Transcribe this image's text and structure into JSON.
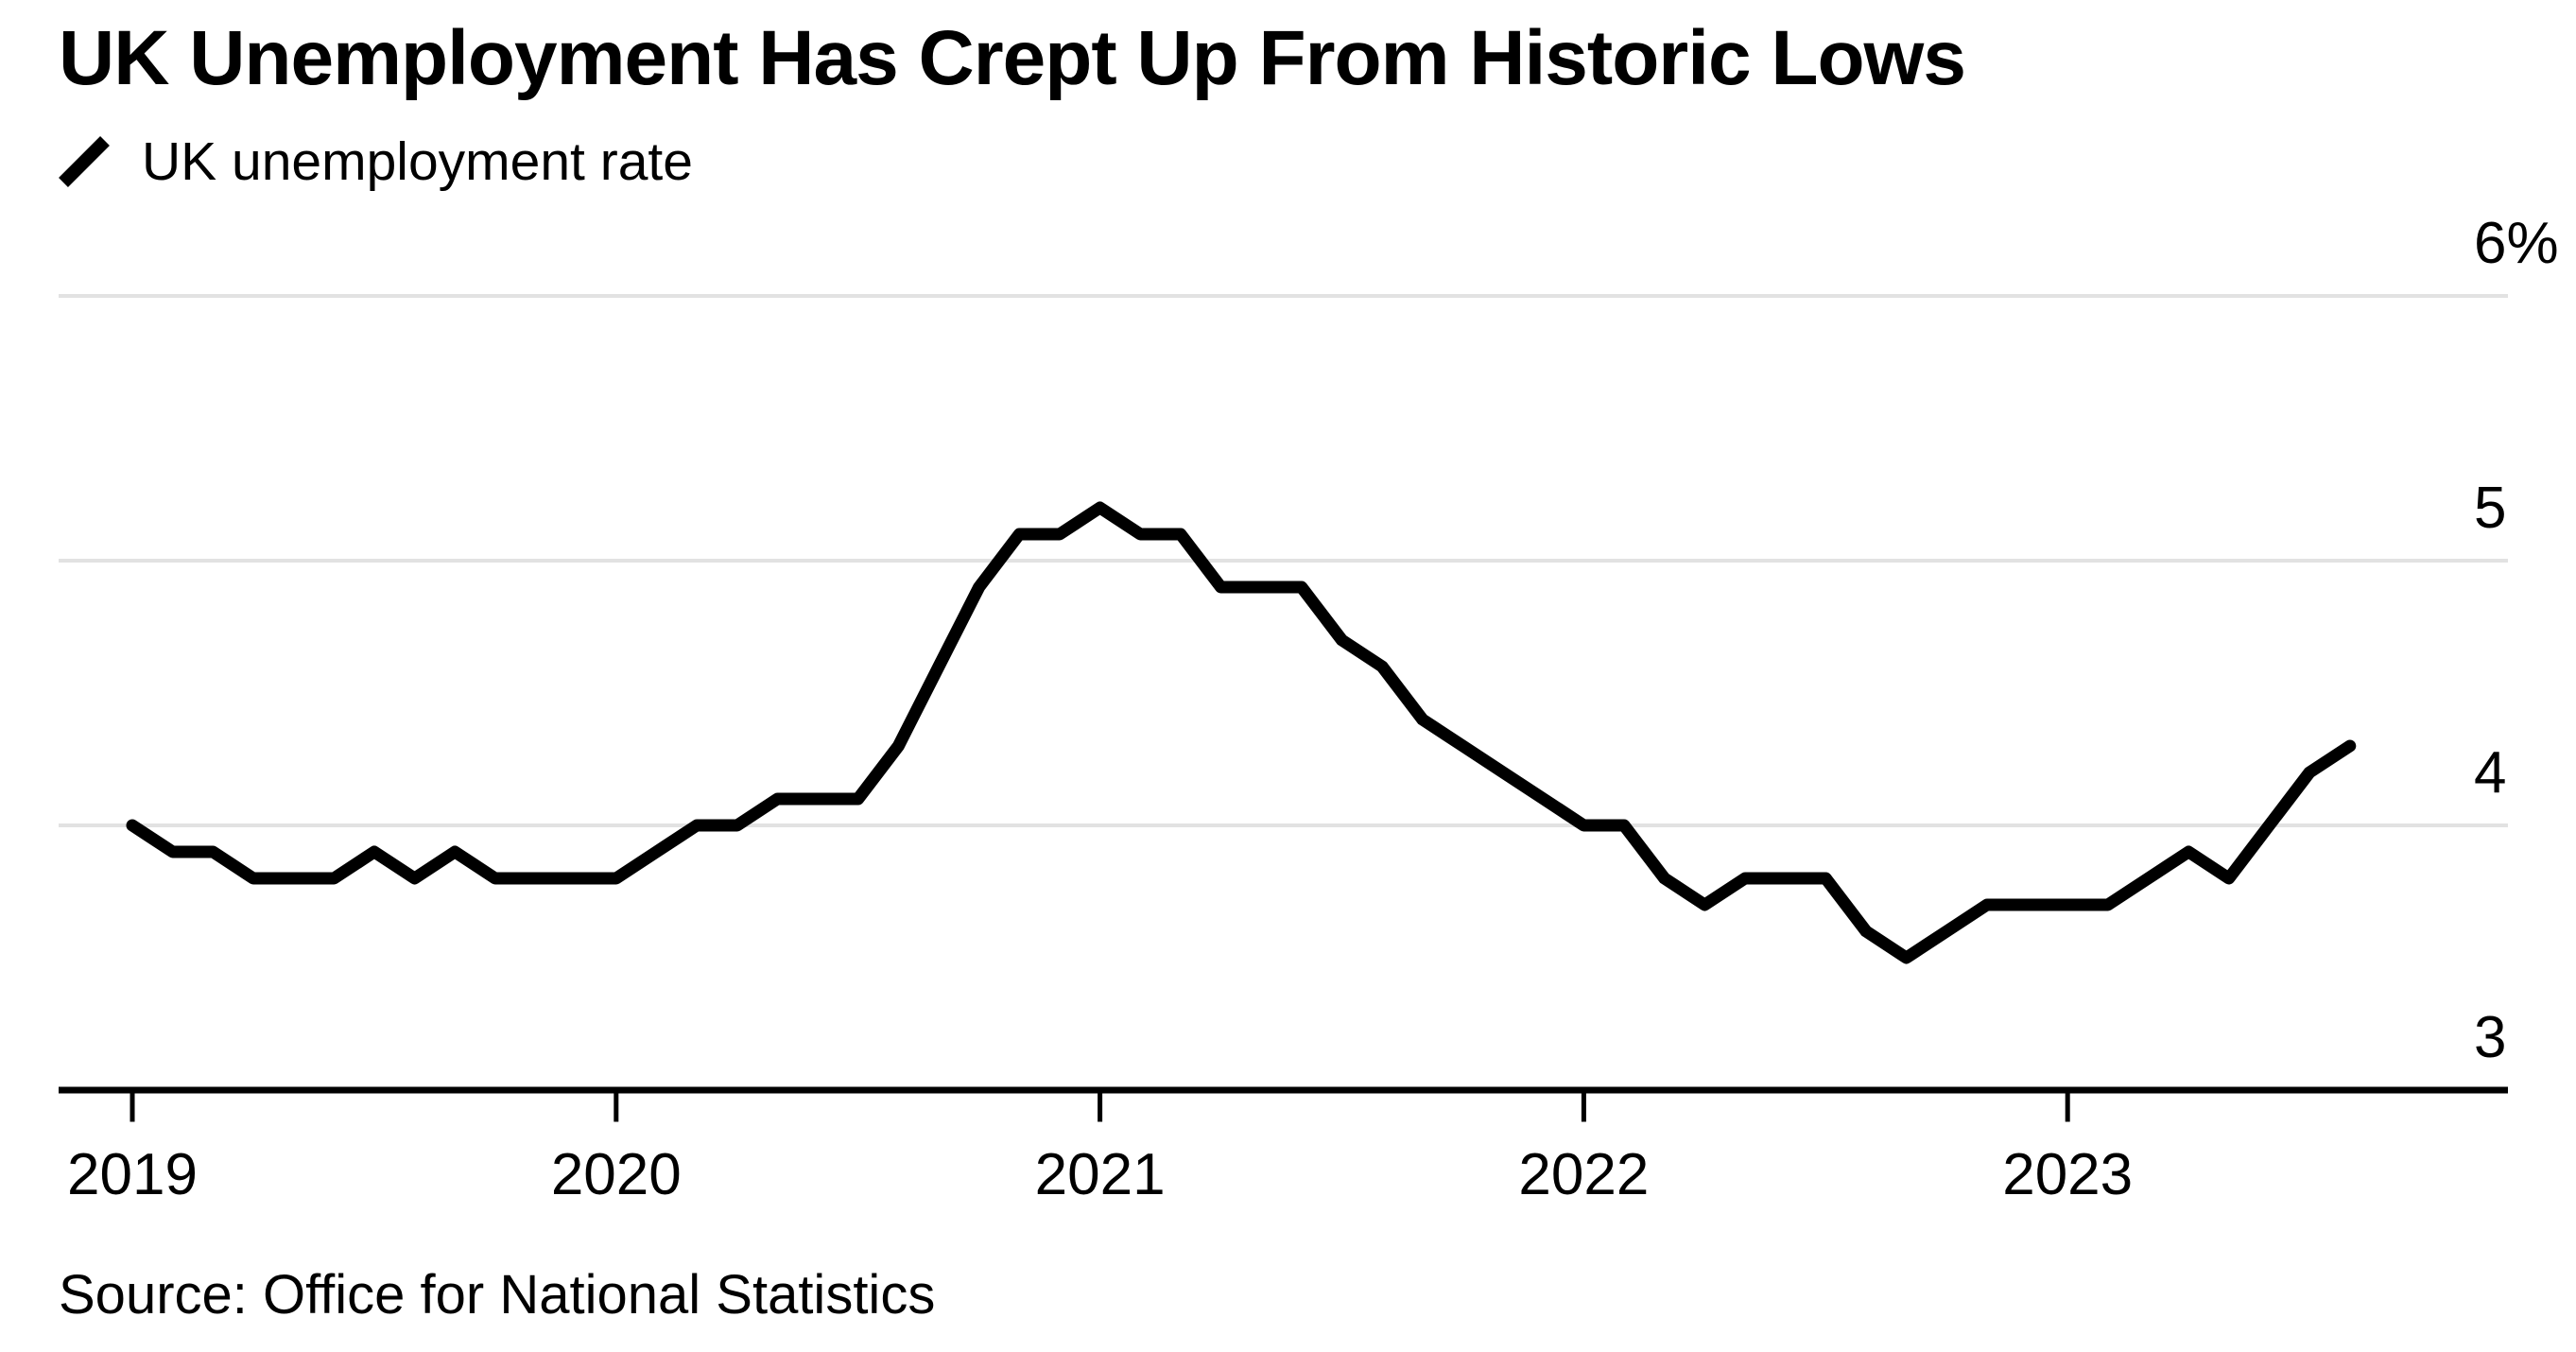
{
  "page": {
    "background_color": "#ffffff",
    "text_color": "#000000"
  },
  "header": {
    "title": "UK Unemployment Has Crept Up From Historic Lows"
  },
  "legend": {
    "position": "top-left",
    "items": [
      {
        "marker": "slash-icon",
        "label": "UK unemployment rate",
        "color": "#000000"
      }
    ]
  },
  "footer": {
    "source_note": "Source: Office for National Statistics"
  },
  "chart_data": {
    "type": "line",
    "title": "UK Unemployment Has Crept Up From Historic Lows",
    "unit": "percent",
    "grid": "horizontal",
    "gridline_color": "#e2e2e2",
    "axis_color": "#000000",
    "line_color": "#000000",
    "legend_position": "top-left",
    "ylim": [
      3,
      6
    ],
    "y_ticks": [
      {
        "label": "6%",
        "value": 6
      },
      {
        "label": "5",
        "value": 5
      },
      {
        "label": "4",
        "value": 4
      },
      {
        "label": "3",
        "value": 3
      }
    ],
    "x_ticks": [
      {
        "label": "2019",
        "month_index": 0
      },
      {
        "label": "2020",
        "month_index": 12
      },
      {
        "label": "2021",
        "month_index": 24
      },
      {
        "label": "2022",
        "month_index": 36
      },
      {
        "label": "2023",
        "month_index": 48
      }
    ],
    "series": [
      {
        "name": "UK unemployment rate",
        "color": "#000000",
        "x": [
          "2019-01",
          "2019-02",
          "2019-03",
          "2019-04",
          "2019-05",
          "2019-06",
          "2019-07",
          "2019-08",
          "2019-09",
          "2019-10",
          "2019-11",
          "2019-12",
          "2020-01",
          "2020-02",
          "2020-03",
          "2020-04",
          "2020-05",
          "2020-06",
          "2020-07",
          "2020-08",
          "2020-09",
          "2020-10",
          "2020-11",
          "2020-12",
          "2021-01",
          "2021-02",
          "2021-03",
          "2021-04",
          "2021-05",
          "2021-06",
          "2021-07",
          "2021-08",
          "2021-09",
          "2021-10",
          "2021-11",
          "2021-12",
          "2022-01",
          "2022-02",
          "2022-03",
          "2022-04",
          "2022-05",
          "2022-06",
          "2022-07",
          "2022-08",
          "2022-09",
          "2022-10",
          "2022-11",
          "2022-12",
          "2023-01",
          "2023-02",
          "2023-03",
          "2023-04",
          "2023-05",
          "2023-06",
          "2023-07",
          "2023-08"
        ],
        "values": [
          4.0,
          3.9,
          3.9,
          3.8,
          3.8,
          3.8,
          3.9,
          3.8,
          3.9,
          3.8,
          3.8,
          3.8,
          3.8,
          3.9,
          4.0,
          4.0,
          4.1,
          4.1,
          4.1,
          4.3,
          4.6,
          4.9,
          5.1,
          5.1,
          5.2,
          5.1,
          5.1,
          4.9,
          4.9,
          4.9,
          4.7,
          4.6,
          4.4,
          4.3,
          4.2,
          4.1,
          4.0,
          4.0,
          3.8,
          3.7,
          3.8,
          3.8,
          3.8,
          3.6,
          3.5,
          3.6,
          3.7,
          3.7,
          3.7,
          3.7,
          3.8,
          3.9,
          3.8,
          4.0,
          4.2,
          4.3
        ]
      }
    ]
  }
}
